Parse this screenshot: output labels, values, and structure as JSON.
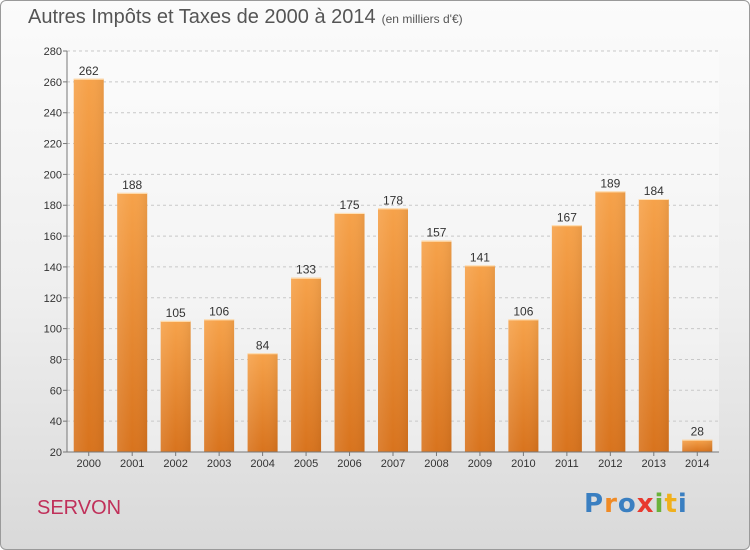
{
  "chart_data": {
    "type": "bar",
    "title": "Autres Impôts et Taxes de 2000 à 2014",
    "subtitle": "(en milliers d'€)",
    "categories": [
      "2000",
      "2001",
      "2002",
      "2003",
      "2004",
      "2005",
      "2006",
      "2007",
      "2008",
      "2009",
      "2010",
      "2011",
      "2012",
      "2013",
      "2014"
    ],
    "values": [
      262,
      188,
      105,
      106,
      84,
      133,
      175,
      178,
      157,
      141,
      106,
      167,
      189,
      184,
      28
    ],
    "ylim": [
      20,
      280
    ],
    "yticks": [
      20,
      40,
      60,
      80,
      100,
      120,
      140,
      160,
      180,
      200,
      220,
      240,
      260,
      280
    ],
    "grid": "horizontal-dashed",
    "bar_color": "#f19b3d",
    "xlabel": "",
    "ylabel": ""
  },
  "commune": "SERVON",
  "logo": {
    "text": "Proxiti",
    "colors": [
      "#3a7fc1",
      "#f08a24",
      "#3a7fc1",
      "#e8392e",
      "#6ab23a",
      "#f0b01c",
      "#3a7fc1"
    ]
  }
}
